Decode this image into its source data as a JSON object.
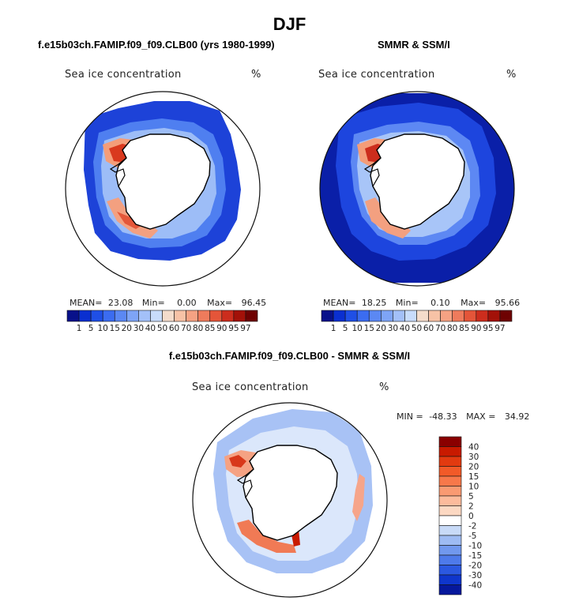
{
  "title": "DJF",
  "panels": {
    "model": {
      "title": "f.e15b03ch.FAMIP.f09_f09.CLB00 (yrs 1980-1999)",
      "variable": "Sea ice concentration",
      "units": "%",
      "stats": {
        "mean_label": "MEAN=",
        "mean": "23.08",
        "min_label": "Min=",
        "min": "0.00",
        "max_label": "Max=",
        "max": "96.45"
      }
    },
    "obs": {
      "title": "SMMR & SSM/I",
      "variable": "Sea ice concentration",
      "units": "%",
      "stats": {
        "mean_label": "MEAN=",
        "mean": "18.25",
        "min_label": "Min=",
        "min": "0.10",
        "max_label": "Max=",
        "max": "95.66"
      }
    },
    "diff": {
      "title": "f.e15b03ch.FAMIP.f09_f09.CLB00 - SMMR & SSM/I",
      "variable": "Sea ice concentration",
      "units": "%",
      "stats": {
        "min_label": "MIN =",
        "min": "-48.33",
        "max_label": "MAX =",
        "max": "34.92"
      }
    }
  },
  "colorbar_abs": {
    "labels": [
      "1",
      "5",
      "10",
      "15",
      "20",
      "30",
      "40",
      "50",
      "60",
      "70",
      "80",
      "85",
      "90",
      "95",
      "97"
    ],
    "colors": [
      "#08118a",
      "#0a2fd0",
      "#1f4fe6",
      "#3b6cf0",
      "#5b88f3",
      "#7ea4f6",
      "#a3c0f8",
      "#c8dcfb",
      "#f4dccb",
      "#f7c2a6",
      "#f5a283",
      "#ee7b5c",
      "#e45539",
      "#cc2d1d",
      "#a31108",
      "#6e0202"
    ]
  },
  "colorbar_diff": {
    "labels": [
      "40",
      "30",
      "20",
      "15",
      "10",
      "5",
      "2",
      "0",
      "-2",
      "-5",
      "-10",
      "-15",
      "-20",
      "-30",
      "-40"
    ],
    "colors": [
      "#8a0000",
      "#c81a00",
      "#e23a10",
      "#f25a28",
      "#f7784a",
      "#f99a72",
      "#fcbb9c",
      "#fcd8c2",
      "#ffffff",
      "#c8daf7",
      "#9ebbf3",
      "#7198ee",
      "#4e7aea",
      "#2b58e0",
      "#0f36cc",
      "#06189c"
    ]
  },
  "chart_data": {
    "type": "heatmap",
    "note_free": true,
    "series": [
      {
        "name": "f.e15b03ch.FAMIP.f09_f09.CLB00 (yrs 1980-1999)",
        "mean": 23.08,
        "min": 0.0,
        "max": 96.45
      },
      {
        "name": "SMMR & SSM/I",
        "mean": 18.25,
        "min": 0.1,
        "max": 95.66
      },
      {
        "name": "f.e15b03ch.FAMIP.f09_f09.CLB00 - SMMR & SSM/I",
        "min": -48.33,
        "max": 34.92
      }
    ],
    "abs_levels": [
      1,
      5,
      10,
      15,
      20,
      30,
      40,
      50,
      60,
      70,
      80,
      85,
      90,
      95,
      97
    ],
    "diff_levels": [
      40,
      30,
      20,
      15,
      10,
      5,
      2,
      0,
      -2,
      -5,
      -10,
      -15,
      -20,
      -30,
      -40
    ]
  }
}
